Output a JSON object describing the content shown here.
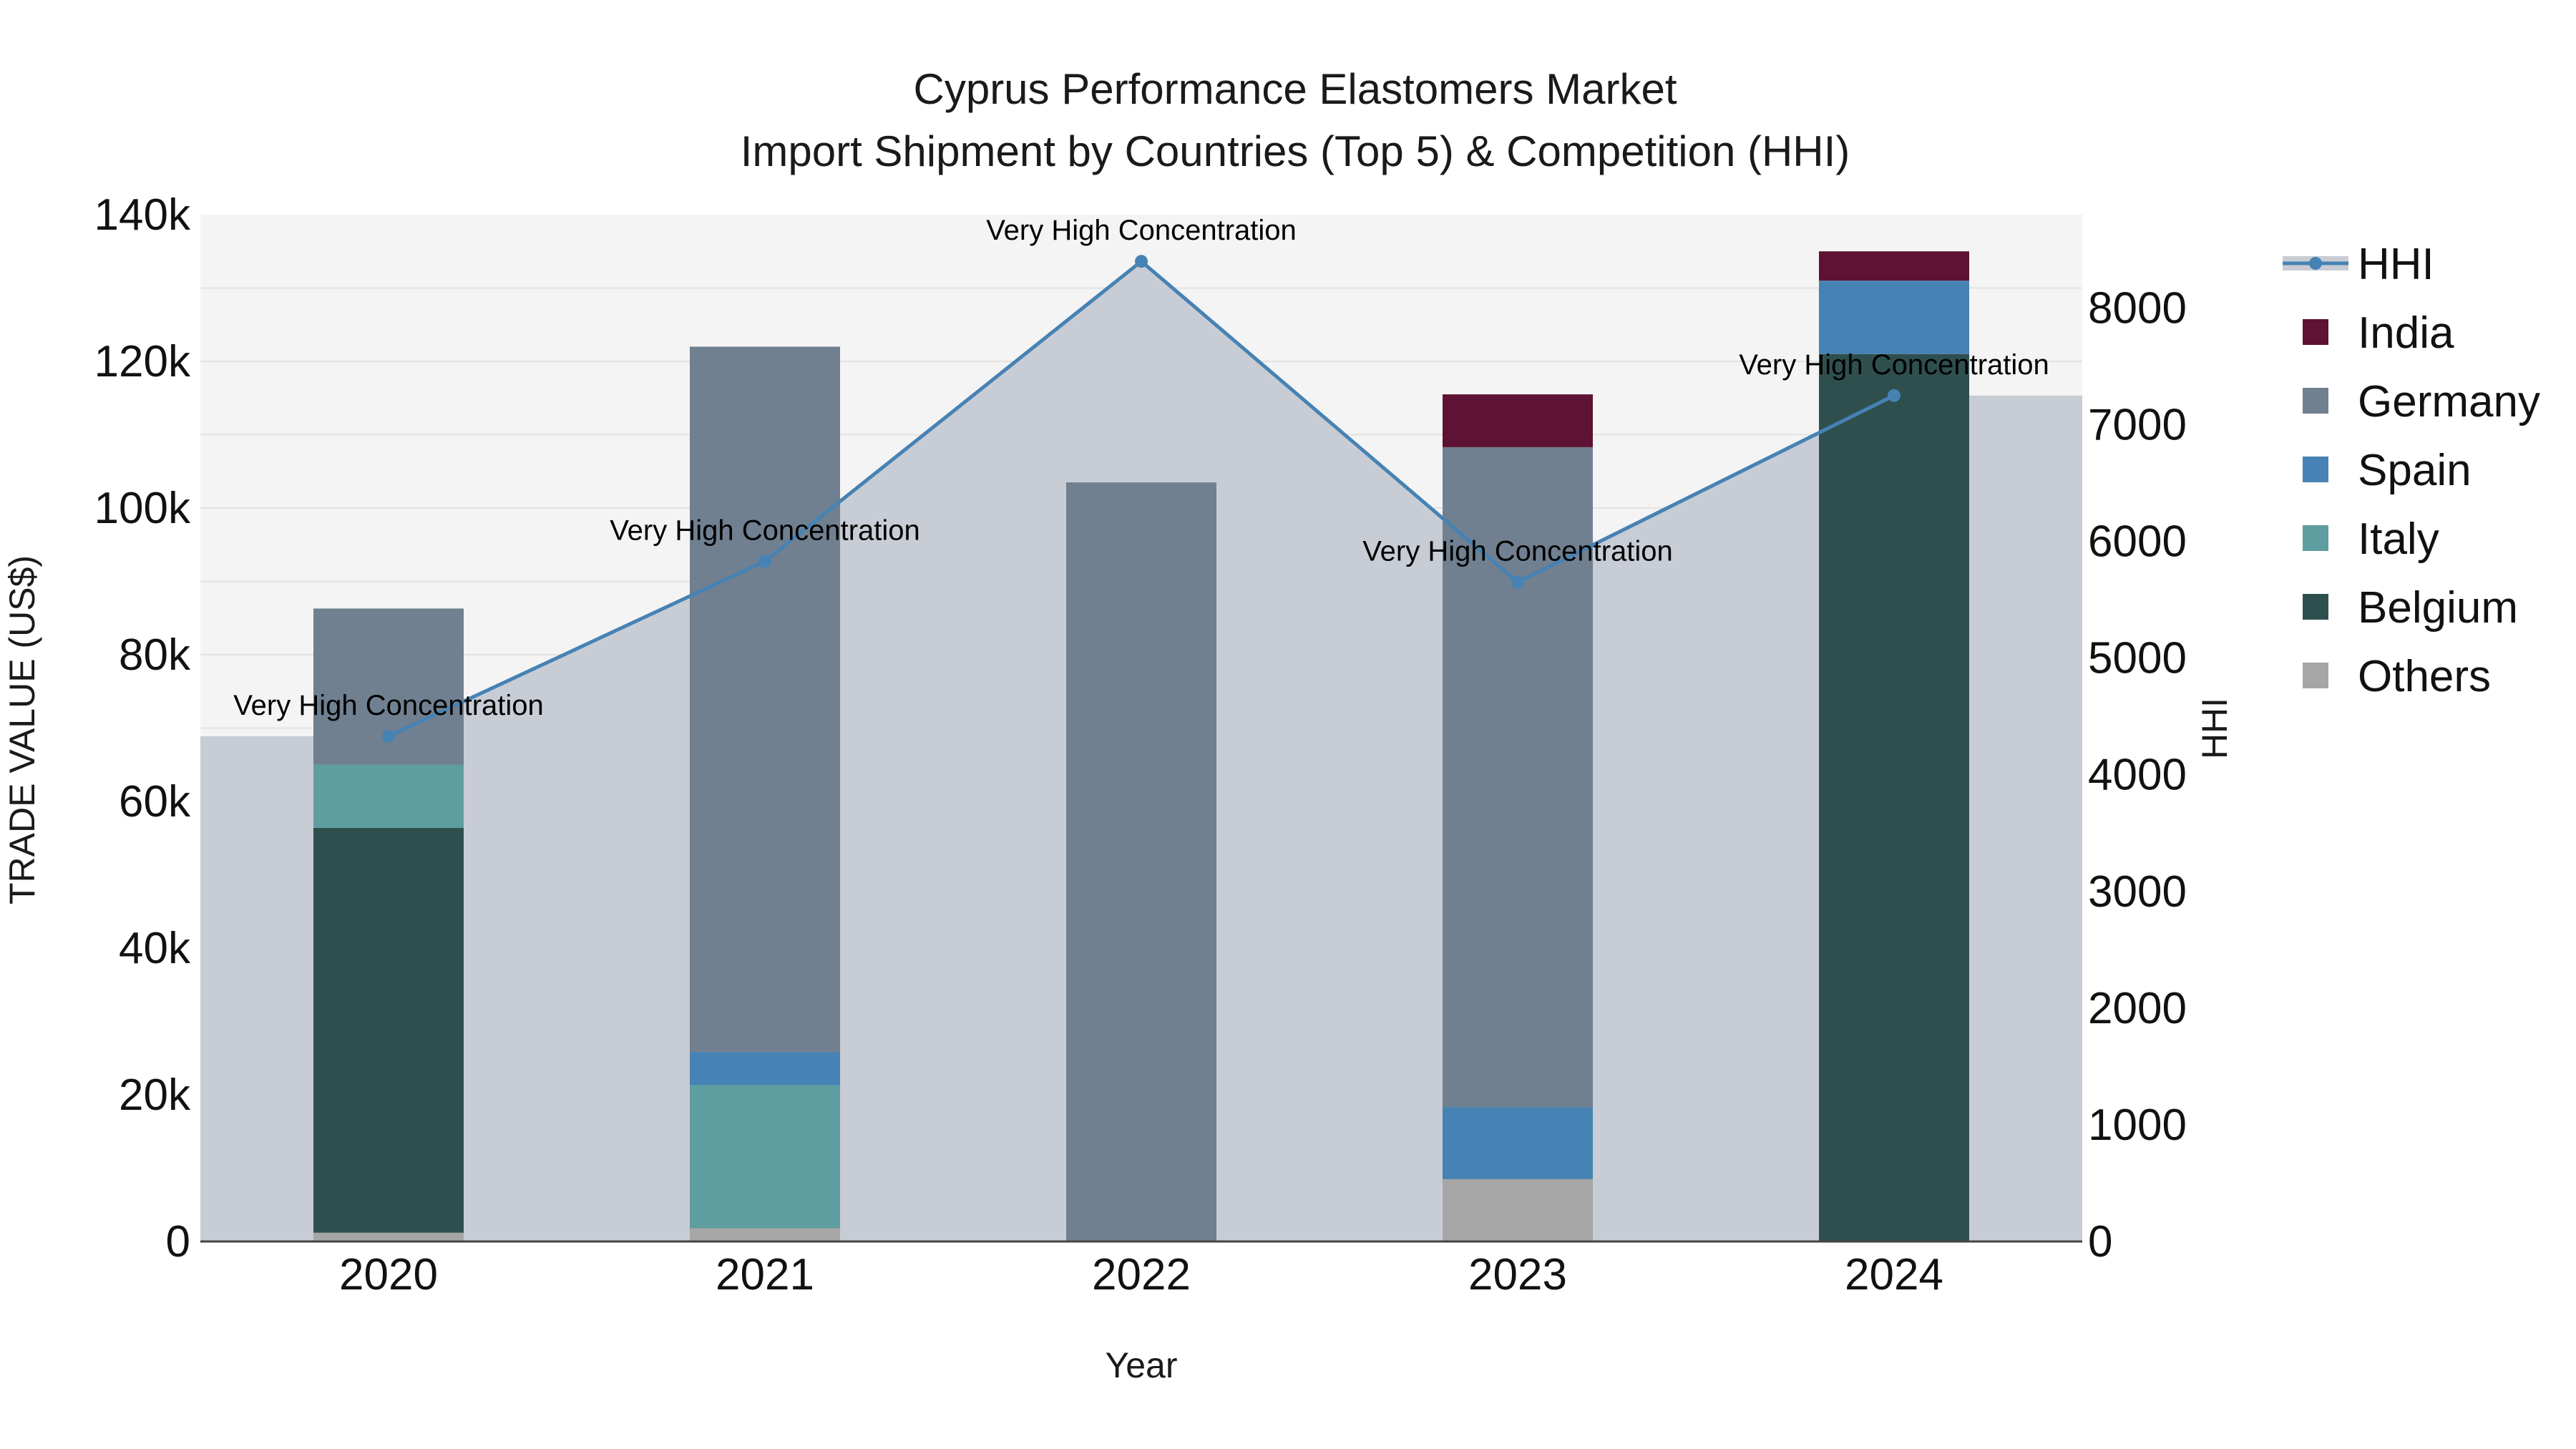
{
  "chart_data": {
    "type": "bar",
    "title": "Cyprus Performance Elastomers Market",
    "subtitle": "Import Shipment by Countries (Top 5) & Competition (HHI)",
    "xlabel": "Year",
    "ylabel": "TRADE VALUE (US$)",
    "y2label": "HHI",
    "categories": [
      "2020",
      "2021",
      "2022",
      "2023",
      "2024"
    ],
    "ylim": [
      0,
      140000
    ],
    "y_ticks": [
      0,
      20000,
      40000,
      60000,
      80000,
      100000,
      120000,
      140000
    ],
    "y_tick_labels": [
      "0",
      "20k",
      "40k",
      "60k",
      "80k",
      "100k",
      "120k",
      "140k"
    ],
    "y2lim": [
      0,
      8800
    ],
    "y2_ticks": [
      0,
      1000,
      2000,
      3000,
      4000,
      5000,
      6000,
      7000,
      8000
    ],
    "y2_tick_labels": [
      "0",
      "1000",
      "2000",
      "3000",
      "4000",
      "5000",
      "6000",
      "7000",
      "8000"
    ],
    "series": [
      {
        "name": "Others",
        "color": "#a6a6a6",
        "values": [
          1200,
          1800,
          0,
          8500,
          0
        ]
      },
      {
        "name": "Belgium",
        "color": "#2f4f4f",
        "values": [
          55200,
          0,
          0,
          0,
          121000
        ]
      },
      {
        "name": "Italy",
        "color": "#5f9ea0",
        "values": [
          8600,
          19500,
          0,
          0,
          0
        ]
      },
      {
        "name": "Spain",
        "color": "#4682b4",
        "values": [
          0,
          4500,
          0,
          9800,
          10000
        ]
      },
      {
        "name": "Germany",
        "color": "#708090",
        "values": [
          21300,
          96200,
          103500,
          90000,
          0
        ]
      },
      {
        "name": "India",
        "color": "#5e1234",
        "values": [
          0,
          0,
          0,
          7200,
          4000
        ]
      }
    ],
    "hhi": {
      "name": "HHI",
      "color": "#4682b4",
      "values": [
        4330,
        5830,
        8400,
        5650,
        7250
      ],
      "annotations": [
        "Very High Concentration",
        "Very High Concentration",
        "Very High Concentration",
        "Very High Concentration",
        "Very High Concentration"
      ]
    },
    "legend": [
      "HHI",
      "India",
      "Germany",
      "Spain",
      "Italy",
      "Belgium",
      "Others"
    ],
    "legend_position": "right",
    "colors": {
      "plot_bg": "#f4f4f4",
      "grid": "#e2e2e2",
      "hhi_fill": "#c8ccd4",
      "axis_line": "#444444"
    }
  }
}
